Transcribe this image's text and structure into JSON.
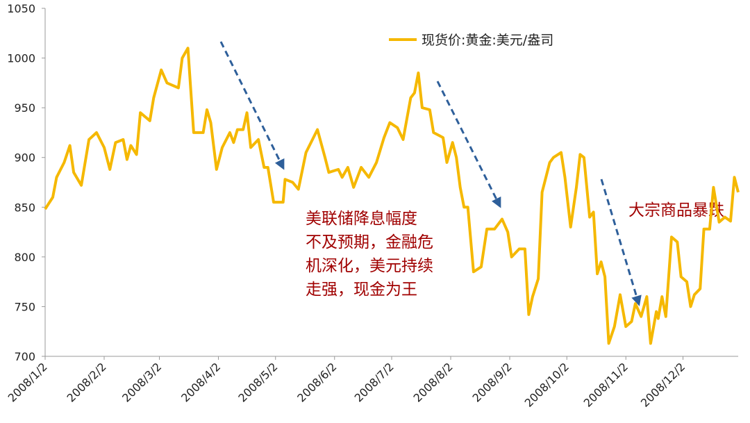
{
  "chart_data": {
    "type": "line",
    "x": [
      "2008/1/2",
      "2008/1/6",
      "2008/1/8",
      "2008/1/12",
      "2008/1/15",
      "2008/1/17",
      "2008/1/21",
      "2008/1/25",
      "2008/1/29",
      "2008/2/2",
      "2008/2/5",
      "2008/2/8",
      "2008/2/12",
      "2008/2/14",
      "2008/2/16",
      "2008/2/19",
      "2008/2/21",
      "2008/2/26",
      "2008/2/28",
      "2008/3/3",
      "2008/3/6",
      "2008/3/12",
      "2008/3/14",
      "2008/3/17",
      "2008/3/20",
      "2008/3/25",
      "2008/3/27",
      "2008/3/29",
      "2008/4/1",
      "2008/4/4",
      "2008/4/8",
      "2008/4/10",
      "2008/4/12",
      "2008/4/15",
      "2008/4/17",
      "2008/4/19",
      "2008/4/23",
      "2008/4/26",
      "2008/4/28",
      "2008/5/1",
      "2008/5/6",
      "2008/5/7",
      "2008/5/11",
      "2008/5/14",
      "2008/5/18",
      "2008/5/24",
      "2008/5/28",
      "2008/5/30",
      "2008/6/4",
      "2008/6/6",
      "2008/6/9",
      "2008/6/12",
      "2008/6/16",
      "2008/6/20",
      "2008/6/24",
      "2008/6/28",
      "2008/7/1",
      "2008/7/5",
      "2008/7/8",
      "2008/7/12",
      "2008/7/14",
      "2008/7/16",
      "2008/7/18",
      "2008/7/22",
      "2008/7/24",
      "2008/7/29",
      "2008/7/31",
      "2008/8/3",
      "2008/8/5",
      "2008/8/7",
      "2008/8/9",
      "2008/8/11",
      "2008/8/14",
      "2008/8/18",
      "2008/8/21",
      "2008/8/25",
      "2008/8/29",
      "2008/9/1",
      "2008/9/3",
      "2008/9/7",
      "2008/9/10",
      "2008/9/12",
      "2008/9/14",
      "2008/9/17",
      "2008/9/19",
      "2008/9/23",
      "2008/9/25",
      "2008/9/29",
      "2008/10/1",
      "2008/10/4",
      "2008/10/7",
      "2008/10/9",
      "2008/10/11",
      "2008/10/14",
      "2008/10/16",
      "2008/10/18",
      "2008/10/20",
      "2008/10/22",
      "2008/10/24",
      "2008/10/27",
      "2008/10/30",
      "2008/11/2",
      "2008/11/5",
      "2008/11/7",
      "2008/11/10",
      "2008/11/13",
      "2008/11/15",
      "2008/11/18",
      "2008/11/19",
      "2008/11/21",
      "2008/11/23",
      "2008/11/26",
      "2008/11/29",
      "2008/12/1",
      "2008/12/4",
      "2008/12/6",
      "2008/12/8",
      "2008/12/11",
      "2008/12/13",
      "2008/12/16",
      "2008/12/18",
      "2008/12/21",
      "2008/12/24",
      "2008/12/27",
      "2008/12/29",
      "2008/12/31"
    ],
    "series": [
      {
        "name": "现货价:黄金:美元/盎司",
        "color": "#f5b800",
        "values": [
          848,
          860,
          880,
          895,
          912,
          885,
          872,
          918,
          925,
          910,
          888,
          915,
          918,
          898,
          912,
          903,
          945,
          937,
          960,
          988,
          975,
          970,
          1000,
          1010,
          925,
          925,
          948,
          935,
          888,
          910,
          925,
          915,
          928,
          928,
          945,
          910,
          918,
          890,
          890,
          855,
          855,
          878,
          875,
          868,
          905,
          928,
          900,
          885,
          888,
          880,
          890,
          870,
          890,
          880,
          895,
          920,
          935,
          930,
          918,
          960,
          965,
          985,
          950,
          948,
          925,
          920,
          895,
          915,
          900,
          870,
          850,
          850,
          785,
          790,
          828,
          828,
          838,
          825,
          800,
          808,
          808,
          742,
          760,
          778,
          865,
          895,
          900,
          905,
          880,
          830,
          870,
          903,
          900,
          840,
          845,
          783,
          795,
          780,
          713,
          730,
          762,
          730,
          735,
          753,
          740,
          760,
          713,
          745,
          738,
          760,
          740,
          820,
          815,
          780,
          775,
          750,
          762,
          768,
          828,
          828,
          870,
          835,
          840,
          836,
          880,
          865
        ]
      }
    ],
    "xlim": [
      "2008/1/2",
      "2008/12/31"
    ],
    "xticks": [
      "2008/1/2",
      "2008/2/2",
      "2008/3/2",
      "2008/4/2",
      "2008/5/2",
      "2008/6/2",
      "2008/7/2",
      "2008/8/2",
      "2008/9/2",
      "2008/10/2",
      "2008/11/2",
      "2008/12/2"
    ],
    "ylim": [
      700,
      1050
    ],
    "yticks": [
      700,
      750,
      800,
      850,
      900,
      950,
      1000,
      1050
    ],
    "annotations": [
      [
        "美联储降息幅度",
        "不及预期，金融危",
        "机深化，美元持续",
        "走强，现金为王"
      ],
      "大宗商品暴跌"
    ]
  }
}
